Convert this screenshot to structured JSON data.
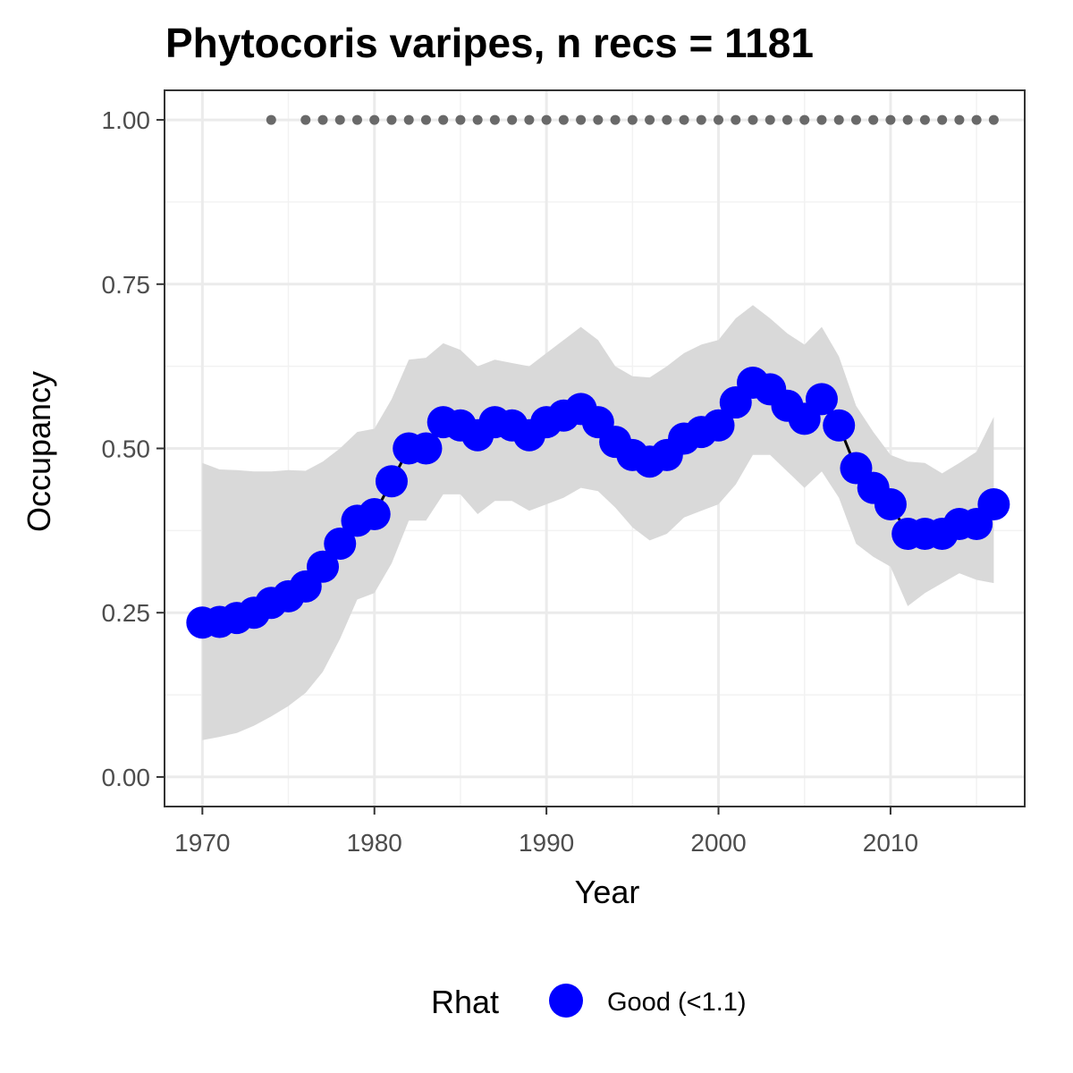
{
  "chart_data": {
    "type": "line",
    "title": "Phytocoris varipes, n recs = 1181",
    "xlabel": "Year",
    "ylabel": "Occupancy",
    "xlim": [
      1967.8,
      2017.8
    ],
    "ylim": [
      -0.045,
      1.045
    ],
    "x_ticks": [
      1970,
      1980,
      1990,
      2000,
      2010
    ],
    "x_tick_labels": [
      "1970",
      "1980",
      "1990",
      "2000",
      "2010"
    ],
    "y_ticks": [
      0,
      0.25,
      0.5,
      0.75,
      1.0
    ],
    "y_tick_labels": [
      "0.00",
      "0.25",
      "0.50",
      "0.75",
      "1.00"
    ],
    "grid": true,
    "legend": {
      "title": "Rhat",
      "position": "bottom",
      "entries": [
        {
          "label": "Good (<1.1)",
          "color": "#0000ff"
        }
      ]
    },
    "series": [
      {
        "name": "Occupancy",
        "color": "#0000ff",
        "x": [
          1970,
          1971,
          1972,
          1973,
          1974,
          1975,
          1976,
          1977,
          1978,
          1979,
          1980,
          1981,
          1982,
          1983,
          1984,
          1985,
          1986,
          1987,
          1988,
          1989,
          1990,
          1991,
          1992,
          1993,
          1994,
          1995,
          1996,
          1997,
          1998,
          1999,
          2000,
          2001,
          2002,
          2003,
          2004,
          2005,
          2006,
          2007,
          2008,
          2009,
          2010,
          2011,
          2012,
          2013,
          2014,
          2015,
          2016
        ],
        "y": [
          0.235,
          0.236,
          0.242,
          0.25,
          0.265,
          0.275,
          0.29,
          0.32,
          0.355,
          0.39,
          0.4,
          0.45,
          0.5,
          0.5,
          0.54,
          0.535,
          0.52,
          0.54,
          0.535,
          0.52,
          0.54,
          0.55,
          0.56,
          0.54,
          0.51,
          0.49,
          0.48,
          0.49,
          0.515,
          0.525,
          0.535,
          0.57,
          0.6,
          0.59,
          0.565,
          0.545,
          0.575,
          0.535,
          0.47,
          0.44,
          0.415,
          0.37,
          0.37,
          0.37,
          0.385,
          0.385,
          0.415
        ]
      }
    ],
    "credible_interval": {
      "color": "#d9d9d9",
      "lower": [
        0.056,
        0.061,
        0.067,
        0.078,
        0.092,
        0.108,
        0.128,
        0.16,
        0.21,
        0.27,
        0.28,
        0.325,
        0.39,
        0.39,
        0.43,
        0.43,
        0.4,
        0.42,
        0.42,
        0.405,
        0.415,
        0.425,
        0.44,
        0.435,
        0.41,
        0.38,
        0.36,
        0.37,
        0.395,
        0.405,
        0.415,
        0.445,
        0.49,
        0.49,
        0.465,
        0.44,
        0.465,
        0.425,
        0.355,
        0.335,
        0.32,
        0.26,
        0.28,
        0.295,
        0.31,
        0.3,
        0.295
      ],
      "upper": [
        0.478,
        0.468,
        0.467,
        0.465,
        0.465,
        0.467,
        0.466,
        0.48,
        0.5,
        0.525,
        0.53,
        0.575,
        0.635,
        0.638,
        0.66,
        0.65,
        0.625,
        0.635,
        0.63,
        0.625,
        0.645,
        0.665,
        0.685,
        0.665,
        0.625,
        0.61,
        0.608,
        0.625,
        0.645,
        0.658,
        0.665,
        0.698,
        0.718,
        0.698,
        0.675,
        0.658,
        0.685,
        0.64,
        0.565,
        0.525,
        0.49,
        0.48,
        0.478,
        0.462,
        0.478,
        0.495,
        0.548
      ]
    },
    "records": {
      "color": "#696969",
      "y": 1.0,
      "x": [
        1974,
        1976,
        1977,
        1978,
        1979,
        1980,
        1981,
        1982,
        1983,
        1984,
        1985,
        1986,
        1987,
        1988,
        1989,
        1990,
        1991,
        1992,
        1993,
        1994,
        1995,
        1996,
        1997,
        1998,
        1999,
        2000,
        2001,
        2002,
        2003,
        2004,
        2005,
        2006,
        2007,
        2008,
        2009,
        2010,
        2011,
        2012,
        2013,
        2014,
        2015,
        2016
      ]
    }
  }
}
